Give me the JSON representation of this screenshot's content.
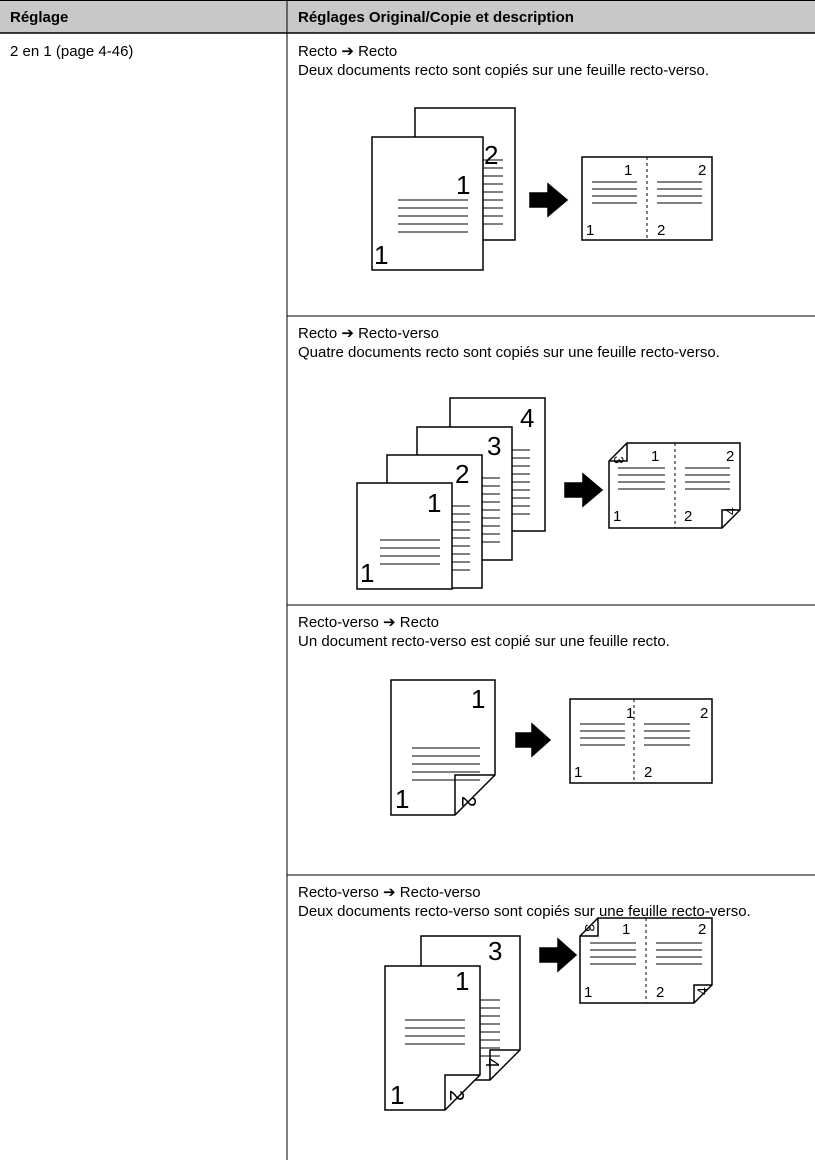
{
  "header": {
    "col1": "Réglage",
    "col2": "Réglages Original/Copie et description"
  },
  "setting": "2 en 1 (page 4-46)",
  "rows": [
    {
      "title": "Recto ➔ Recto",
      "description": "Deux documents recto sont copiés sur une feuille recto-verso.",
      "diagram_labels": [
        "2",
        "1",
        "1",
        "1",
        "2",
        "1",
        "2"
      ]
    },
    {
      "title": "Recto ➔ Recto-verso",
      "description": "Quatre documents recto sont copiés sur une feuille recto-verso.",
      "diagram_labels": [
        "4",
        "3",
        "2",
        "1",
        "1",
        "3",
        "1",
        "2",
        "1",
        "2",
        "4"
      ]
    },
    {
      "title": "Recto-verso ➔ Recto",
      "description": "Un document recto-verso est copié sur une feuille recto.",
      "diagram_labels": [
        "1",
        "1",
        "2",
        "1",
        "2",
        "1",
        "2"
      ]
    },
    {
      "title": "Recto-verso ➔ Recto-verso",
      "description": "Deux documents recto-verso sont copiés sur une feuille recto-verso.",
      "diagram_labels": [
        "3",
        "1",
        "4",
        "1",
        "2",
        "3",
        "1",
        "2",
        "1",
        "2",
        "4"
      ]
    }
  ]
}
